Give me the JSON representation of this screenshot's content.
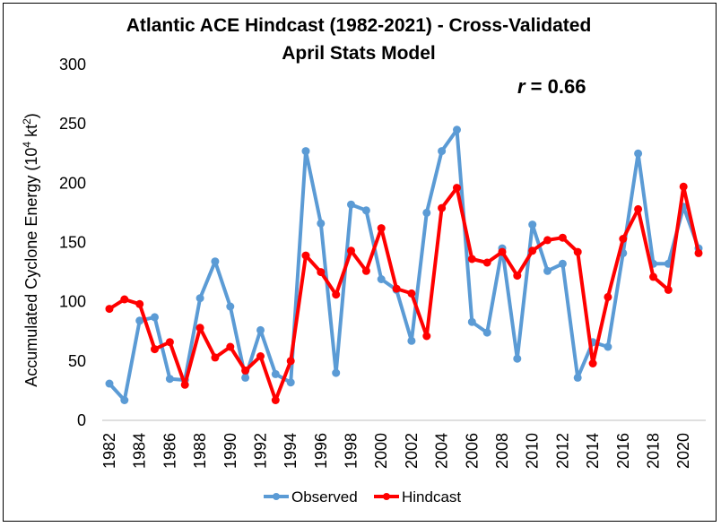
{
  "chart_data": {
    "type": "line",
    "title_line1": "Atlantic ACE Hindcast (1982-2021) - Cross-Validated",
    "title_line2": "April Stats Model",
    "annotation": {
      "prefix": "r",
      "suffix": " = 0.66"
    },
    "ylabel_main": "Accumulated Cyclone Energy (10",
    "ylabel_sup1": "4",
    "ylabel_mid": " kt",
    "ylabel_sup2": "2",
    "ylabel_end": ")",
    "ylim": [
      0,
      300
    ],
    "yticks": [
      0,
      50,
      100,
      150,
      200,
      250,
      300
    ],
    "x": [
      1982,
      1983,
      1984,
      1985,
      1986,
      1987,
      1988,
      1989,
      1990,
      1991,
      1992,
      1993,
      1994,
      1995,
      1996,
      1997,
      1998,
      1999,
      2000,
      2001,
      2002,
      2003,
      2004,
      2005,
      2006,
      2007,
      2008,
      2009,
      2010,
      2011,
      2012,
      2013,
      2014,
      2015,
      2016,
      2017,
      2018,
      2019,
      2020,
      2021
    ],
    "xtick_labels": [
      "1982",
      "1984",
      "1986",
      "1988",
      "1990",
      "1992",
      "1994",
      "1996",
      "1998",
      "2000",
      "2002",
      "2004",
      "2006",
      "2008",
      "2010",
      "2012",
      "2014",
      "2016",
      "2018",
      "2020"
    ],
    "legend_position": "bottom",
    "grid": false,
    "series": [
      {
        "name": "Observed",
        "color": "#5b9bd5",
        "values": [
          31,
          17,
          84,
          87,
          35,
          34,
          103,
          134,
          96,
          36,
          76,
          39,
          32,
          227,
          166,
          40,
          182,
          177,
          119,
          110,
          67,
          175,
          227,
          245,
          83,
          74,
          145,
          52,
          165,
          126,
          132,
          36,
          66,
          62,
          141,
          225,
          132,
          132,
          180,
          145
        ]
      },
      {
        "name": "Hindcast",
        "color": "#ff0000",
        "values": [
          94,
          102,
          98,
          60,
          66,
          30,
          78,
          53,
          62,
          42,
          54,
          17,
          50,
          139,
          125,
          106,
          143,
          126,
          162,
          111,
          107,
          71,
          179,
          196,
          136,
          133,
          142,
          122,
          143,
          152,
          154,
          142,
          48,
          104,
          153,
          178,
          121,
          110,
          197,
          141
        ]
      }
    ]
  }
}
